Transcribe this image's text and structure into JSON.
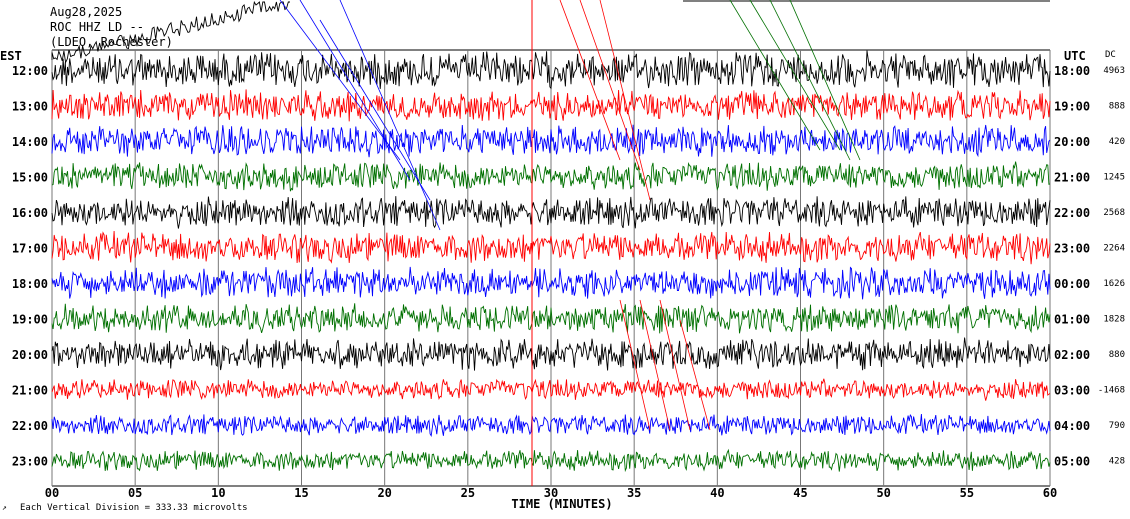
{
  "header": {
    "date": "Aug28,2025",
    "station": "ROC HHZ LD --",
    "location": "(LDEO, Rochester)"
  },
  "left_axis_label": "EST",
  "right_axis_label": "UTC",
  "dc_label": "DC",
  "footer_note": "Each Vertical Division =  333.33 microvolts",
  "colors": {
    "black": "#000000",
    "red": "#ff0000",
    "blue": "#0000ff",
    "green": "#007000"
  },
  "chart_data": {
    "type": "line",
    "title": "",
    "xlabel": "TIME (MINUTES)",
    "x_ticks": [
      "00",
      "05",
      "10",
      "15",
      "20",
      "25",
      "30",
      "35",
      "40",
      "45",
      "50",
      "55",
      "60"
    ],
    "xlim": [
      0,
      60
    ],
    "rows": [
      {
        "est": "12:00",
        "utc": "18:00",
        "dc": "4963",
        "color": "black"
      },
      {
        "est": "13:00",
        "utc": "19:00",
        "dc": "888",
        "color": "red"
      },
      {
        "est": "14:00",
        "utc": "20:00",
        "dc": "420",
        "color": "blue"
      },
      {
        "est": "15:00",
        "utc": "21:00",
        "dc": "1245",
        "color": "green"
      },
      {
        "est": "16:00",
        "utc": "22:00",
        "dc": "2568",
        "color": "black"
      },
      {
        "est": "17:00",
        "utc": "23:00",
        "dc": "2264",
        "color": "red"
      },
      {
        "est": "18:00",
        "utc": "00:00",
        "dc": "1626",
        "color": "blue"
      },
      {
        "est": "19:00",
        "utc": "01:00",
        "dc": "1828",
        "color": "green"
      },
      {
        "est": "20:00",
        "utc": "02:00",
        "dc": "880",
        "color": "black"
      },
      {
        "est": "21:00",
        "utc": "03:00",
        "dc": "-1468",
        "color": "red"
      },
      {
        "est": "22:00",
        "utc": "04:00",
        "dc": "790",
        "color": "blue"
      },
      {
        "est": "23:00",
        "utc": "05:00",
        "dc": "428",
        "color": "green"
      }
    ]
  }
}
